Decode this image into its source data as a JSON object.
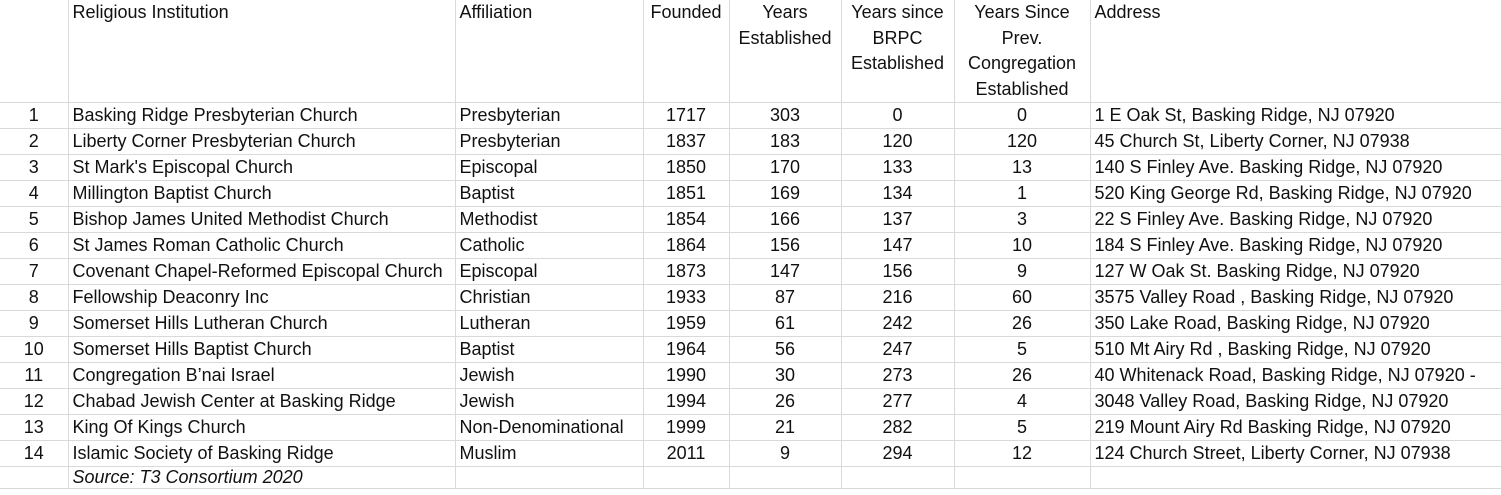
{
  "headers": {
    "institution": "Religious Institution",
    "affiliation": "Affiliation",
    "founded": "Founded",
    "years_established": "Years Established",
    "years_since_brpc": "Years since BRPC Established",
    "years_since_prev": "Years Since Prev. Congregation Established",
    "address": "Address"
  },
  "rows": [
    {
      "n": "1",
      "name": "Basking Ridge Presbyterian Church",
      "aff": "Presbyterian",
      "founded": "1717",
      "years": "303",
      "brpc": "0",
      "prev": "0",
      "address": "1 E Oak St, Basking Ridge, NJ 07920"
    },
    {
      "n": "2",
      "name": "Liberty Corner Presbyterian Church",
      "aff": "Presbyterian",
      "founded": "1837",
      "years": "183",
      "brpc": "120",
      "prev": "120",
      "address": "45 Church St, Liberty Corner, NJ 07938"
    },
    {
      "n": "3",
      "name": "St Mark's Episcopal Church",
      "aff": "Episcopal",
      "founded": "1850",
      "years": "170",
      "brpc": "133",
      "prev": "13",
      "address": "140 S Finley Ave. Basking Ridge, NJ 07920"
    },
    {
      "n": "4",
      "name": "Millington Baptist Church",
      "aff": "Baptist",
      "founded": "1851",
      "years": "169",
      "brpc": "134",
      "prev": "1",
      "address": "520 King George Rd, Basking Ridge, NJ 07920"
    },
    {
      "n": "5",
      "name": "Bishop James United Methodist Church",
      "aff": "Methodist",
      "founded": "1854",
      "years": "166",
      "brpc": "137",
      "prev": "3",
      "address": "22 S Finley Ave. Basking Ridge, NJ 07920"
    },
    {
      "n": "6",
      "name": "St James Roman Catholic Church",
      "aff": "Catholic",
      "founded": "1864",
      "years": "156",
      "brpc": "147",
      "prev": "10",
      "address": "184 S Finley Ave. Basking Ridge, NJ 07920"
    },
    {
      "n": "7",
      "name": "Covenant Chapel-Reformed Episcopal Church",
      "aff": "Episcopal",
      "founded": "1873",
      "years": "147",
      "brpc": "156",
      "prev": "9",
      "address": "127 W Oak St. Basking Ridge, NJ 07920"
    },
    {
      "n": "8",
      "name": "Fellowship Deaconry Inc",
      "aff": "Christian",
      "founded": "1933",
      "years": "87",
      "brpc": "216",
      "prev": "60",
      "address": "3575 Valley Road , Basking Ridge, NJ 07920"
    },
    {
      "n": "9",
      "name": "Somerset Hills Lutheran Church",
      "aff": "Lutheran",
      "founded": "1959",
      "years": "61",
      "brpc": "242",
      "prev": "26",
      "address": "350 Lake Road, Basking Ridge, NJ 07920"
    },
    {
      "n": "10",
      "name": "Somerset Hills Baptist Church",
      "aff": "Baptist",
      "founded": "1964",
      "years": "56",
      "brpc": "247",
      "prev": "5",
      "address": "510 Mt Airy Rd , Basking Ridge, NJ 07920"
    },
    {
      "n": "11",
      "name": "Congregation B’nai Israel",
      "aff": "Jewish",
      "founded": "1990",
      "years": "30",
      "brpc": "273",
      "prev": "26",
      "address": "40 Whitenack Road, Basking Ridge, NJ 07920 -"
    },
    {
      "n": "12",
      "name": "Chabad Jewish Center at Basking Ridge",
      "aff": "Jewish",
      "founded": "1994",
      "years": "26",
      "brpc": "277",
      "prev": "4",
      "address": "3048 Valley Road, Basking Ridge, NJ 07920"
    },
    {
      "n": "13",
      "name": "King Of Kings Church",
      "aff": "Non-Denominational",
      "founded": "1999",
      "years": "21",
      "brpc": "282",
      "prev": "5",
      "address": "219 Mount Airy Rd Basking Ridge, NJ 07920"
    },
    {
      "n": "14",
      "name": "Islamic Society of Basking Ridge",
      "aff": "Muslim",
      "founded": "2011",
      "years": "9",
      "brpc": "294",
      "prev": "12",
      "address": "124 Church Street, Liberty Corner, NJ 07938"
    }
  ],
  "source": "Source: T3 Consortium 2020"
}
